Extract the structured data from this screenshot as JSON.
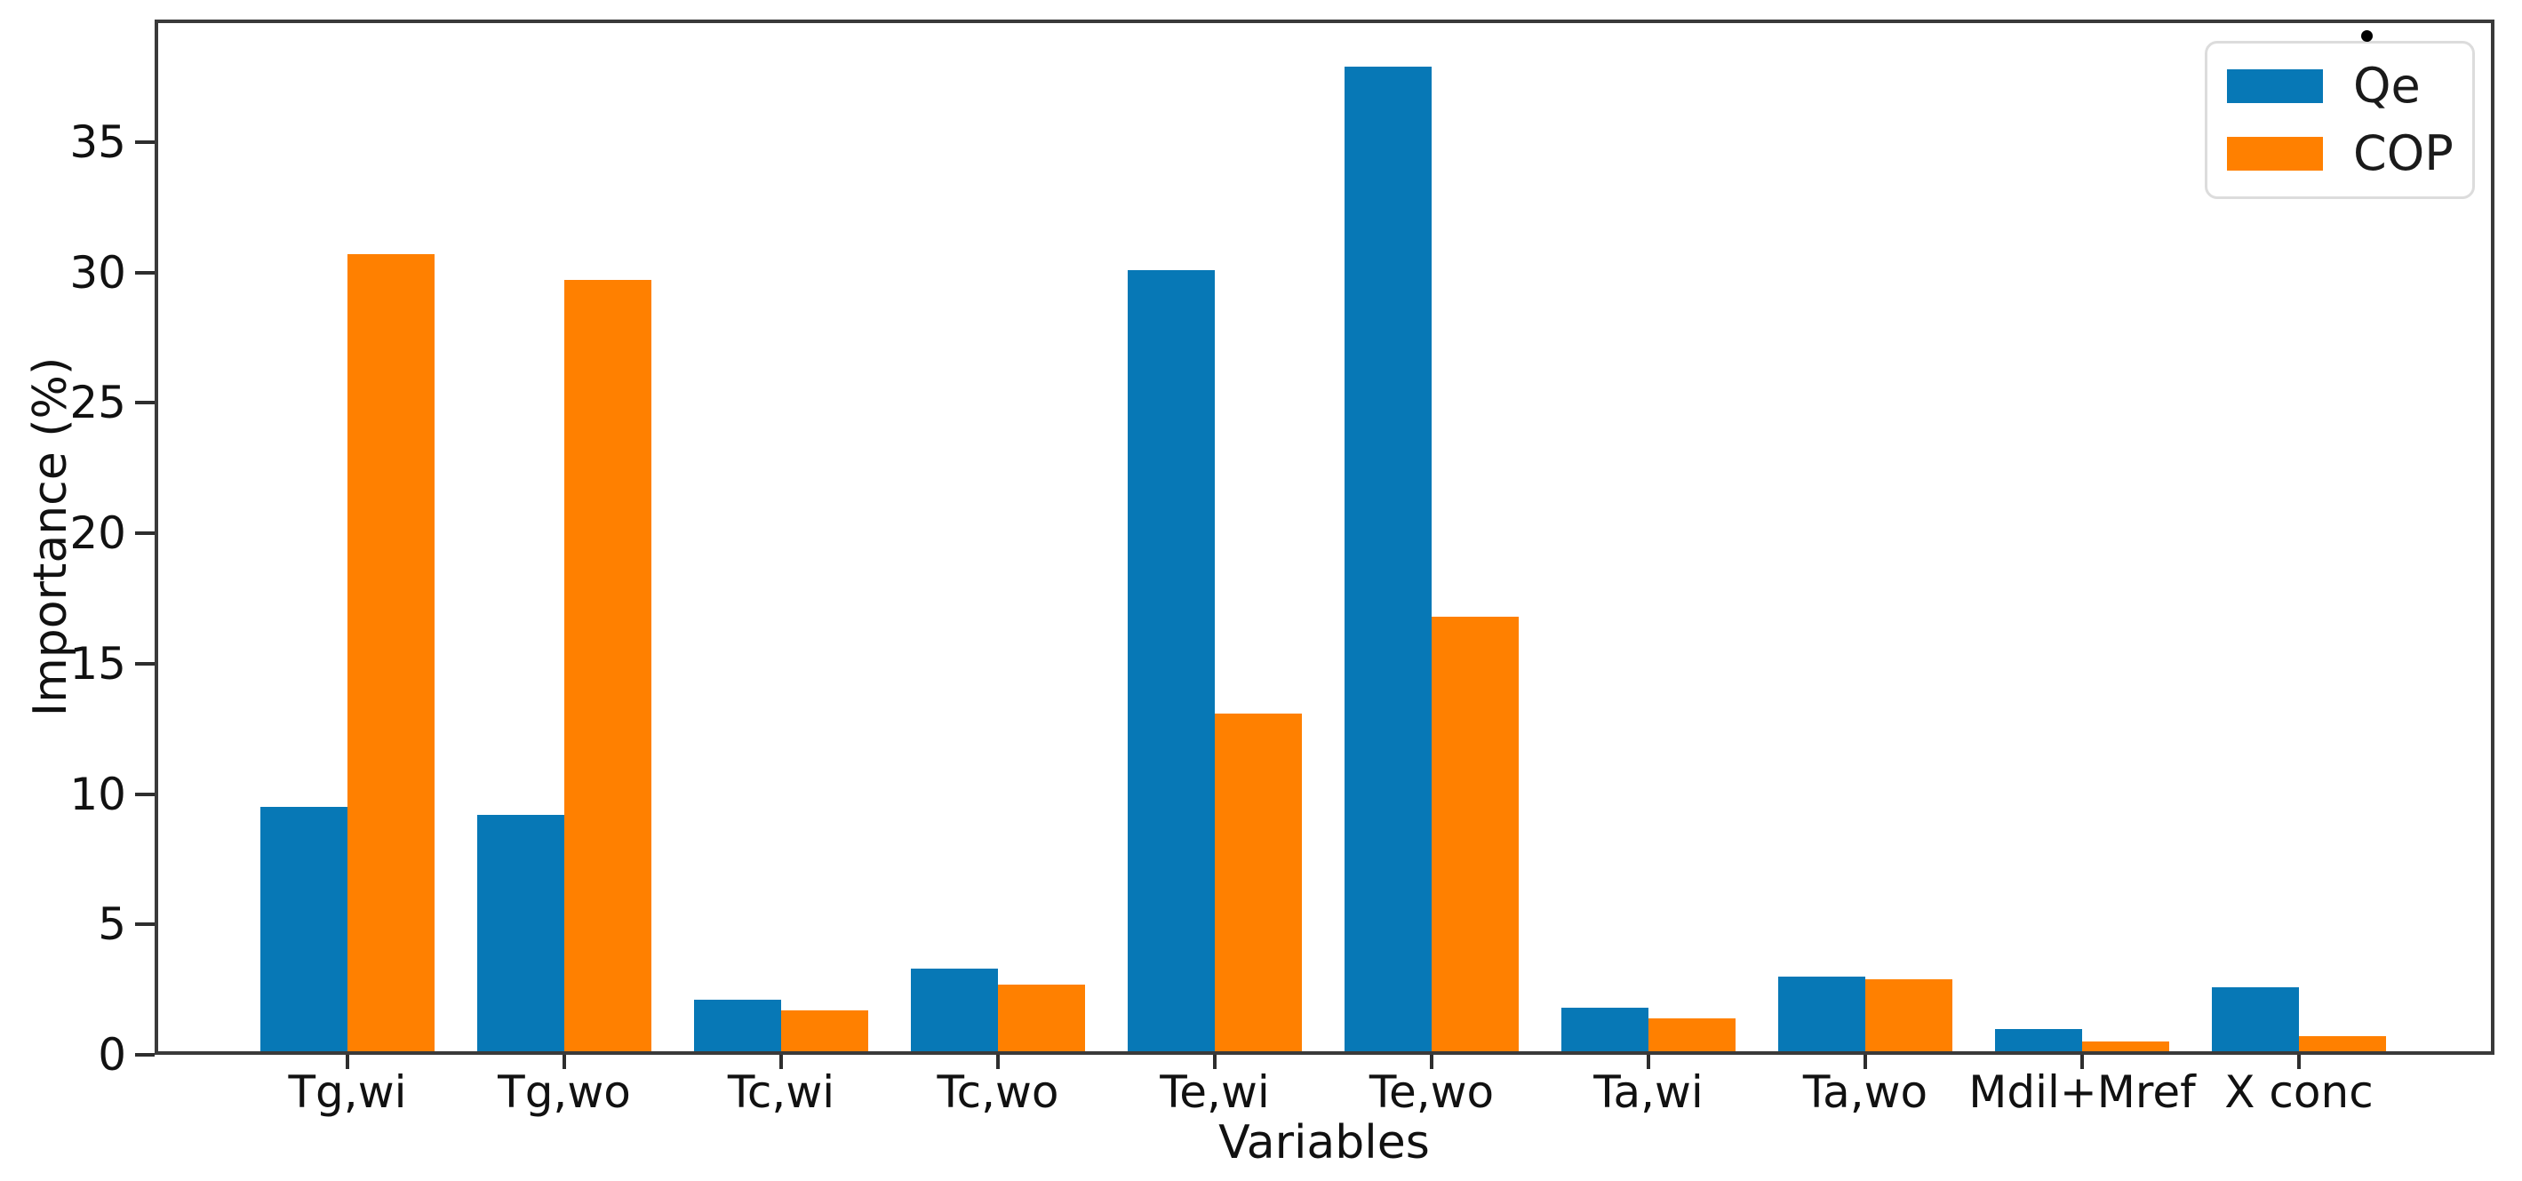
{
  "chart_data": {
    "type": "bar",
    "title": "",
    "xlabel": "Variables",
    "ylabel": "Importance (%)",
    "categories": [
      "Tg,wi",
      "Tg,wo",
      "Tc,wi",
      "Tc,wo",
      "Te,wi",
      "Te,wo",
      "Ta,wi",
      "Ta,wo",
      "Mdil+Mref",
      "X conc"
    ],
    "series": [
      {
        "name": "Qe",
        "color": "#0778b6",
        "values": [
          9.5,
          9.2,
          2.1,
          3.3,
          30.1,
          37.9,
          1.8,
          3.0,
          1.0,
          2.6
        ]
      },
      {
        "name": "COP",
        "color": "#ff8000",
        "values": [
          30.7,
          29.7,
          1.7,
          2.7,
          13.1,
          16.8,
          1.4,
          2.9,
          0.5,
          0.7
        ]
      }
    ],
    "ylim": [
      0,
      39.7
    ],
    "yticks": [
      0,
      5,
      10,
      15,
      20,
      25,
      30,
      35
    ],
    "grid": false,
    "legend_position": "upper right",
    "legend_items": [
      {
        "label": "Qe"
      },
      {
        "label": "COP"
      }
    ]
  }
}
